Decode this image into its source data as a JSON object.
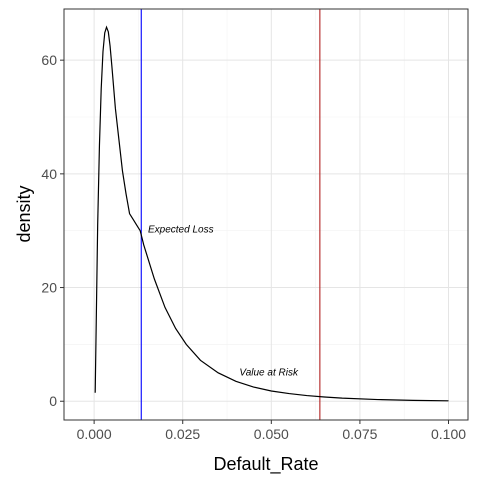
{
  "chart_data": {
    "type": "line",
    "title": "",
    "xlabel": "Default_Rate",
    "ylabel": "density",
    "xlim": [
      -0.0085,
      0.1055
    ],
    "ylim": [
      -3.3,
      69
    ],
    "x_ticks": [
      0.0,
      0.025,
      0.05,
      0.075,
      0.1
    ],
    "x_tick_labels": [
      "0.000",
      "0.025",
      "0.050",
      "0.075",
      "0.100"
    ],
    "y_ticks": [
      0,
      20,
      40,
      60
    ],
    "y_tick_labels": [
      "0",
      "20",
      "40",
      "60"
    ],
    "grid": true,
    "series": [
      {
        "name": "",
        "color": "#000000",
        "x": [
          0.0003,
          0.0006,
          0.001,
          0.0015,
          0.002,
          0.0025,
          0.003,
          0.0035,
          0.004,
          0.0045,
          0.005,
          0.006,
          0.007,
          0.008,
          0.009,
          0.01,
          0.011,
          0.012,
          0.013,
          0.014,
          0.015,
          0.017,
          0.02,
          0.023,
          0.026,
          0.03,
          0.035,
          0.04,
          0.045,
          0.05,
          0.055,
          0.06,
          0.065,
          0.07,
          0.08,
          0.09,
          0.1
        ],
        "values": [
          1.5,
          14,
          31,
          45,
          55,
          61.5,
          64.8,
          65.8,
          65,
          62.5,
          59,
          51.5,
          46,
          40.5,
          36.5,
          33,
          32,
          31,
          30,
          27.5,
          25.5,
          21.5,
          16.5,
          12.8,
          10,
          7.2,
          5,
          3.5,
          2.5,
          1.8,
          1.35,
          1.0,
          0.75,
          0.55,
          0.3,
          0.15,
          0.08
        ]
      }
    ],
    "vlines": [
      {
        "x": 0.0133,
        "color": "#0000ff"
      },
      {
        "x": 0.0637,
        "color": "#b22222"
      }
    ],
    "annotations": [
      {
        "text": "Expected Loss",
        "x": 0.0152,
        "y": 29.7
      },
      {
        "text": "Value at Risk",
        "x": 0.041,
        "y": 4.5
      }
    ]
  }
}
